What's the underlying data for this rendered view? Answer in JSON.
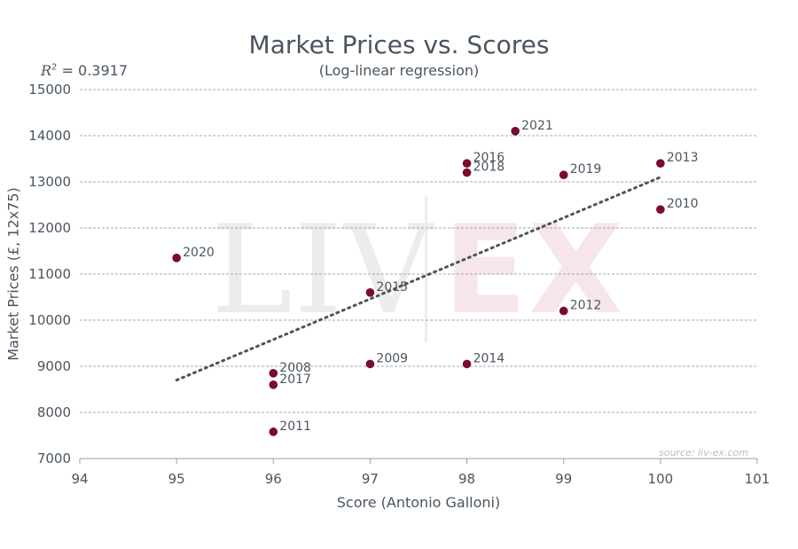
{
  "chart_data": {
    "type": "scatter",
    "title": "Market Prices vs. Scores",
    "subtitle": "(Log-linear regression)",
    "annotation": "R² = 0.3917",
    "r_squared": "= 0.3917",
    "xlabel": "Score (Antonio Galloni)",
    "ylabel": "Market Prices (£, 12x75)",
    "xlim": [
      94,
      101
    ],
    "ylim": [
      7000,
      15000
    ],
    "xticks": [
      "94",
      "95",
      "96",
      "97",
      "98",
      "99",
      "100",
      "101"
    ],
    "yticks": [
      "7000",
      "8000",
      "9000",
      "10000",
      "11000",
      "12000",
      "13000",
      "14000",
      "15000"
    ],
    "grid": "horizontal dashed",
    "points": [
      {
        "label": "2020",
        "x": 95,
        "y": 11350
      },
      {
        "label": "2008",
        "x": 96,
        "y": 8850
      },
      {
        "label": "2017",
        "x": 96,
        "y": 8600
      },
      {
        "label": "2011",
        "x": 96,
        "y": 7580
      },
      {
        "label": "2015",
        "x": 97,
        "y": 10600
      },
      {
        "label": "2009",
        "x": 97,
        "y": 9050
      },
      {
        "label": "2016",
        "x": 98,
        "y": 13400
      },
      {
        "label": "2018",
        "x": 98,
        "y": 13200
      },
      {
        "label": "2014",
        "x": 98,
        "y": 9050
      },
      {
        "label": "2021",
        "x": 98.5,
        "y": 14100
      },
      {
        "label": "2019",
        "x": 99,
        "y": 13150
      },
      {
        "label": "2012",
        "x": 99,
        "y": 10200
      },
      {
        "label": "2013",
        "x": 100,
        "y": 13400
      },
      {
        "label": "2010",
        "x": 100,
        "y": 12400
      }
    ],
    "trendline": {
      "x": [
        95,
        100
      ],
      "y": [
        8700,
        13100
      ],
      "style": "dotted"
    },
    "colors": {
      "point": "#7a0a2e",
      "trend": "#4a5560",
      "text": "#4a5560",
      "grid": "#8a8a8a"
    }
  },
  "watermark": {
    "left": "LIV",
    "right": "EX"
  },
  "source": "source: liv-ex.com"
}
